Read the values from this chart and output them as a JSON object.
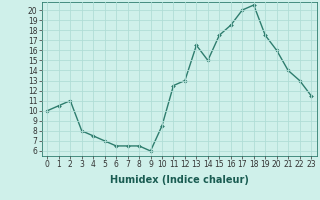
{
  "x": [
    0,
    1,
    2,
    3,
    4,
    5,
    6,
    7,
    8,
    9,
    10,
    11,
    12,
    13,
    14,
    15,
    16,
    17,
    18,
    19,
    20,
    21,
    22,
    23
  ],
  "y": [
    10.0,
    10.5,
    11.0,
    8.0,
    7.5,
    7.0,
    6.5,
    6.5,
    6.5,
    6.0,
    8.5,
    12.5,
    13.0,
    16.5,
    15.0,
    17.5,
    18.5,
    20.0,
    20.5,
    17.5,
    16.0,
    14.0,
    13.0,
    11.5
  ],
  "line_color": "#2e7d6e",
  "marker": "D",
  "marker_size": 2.0,
  "line_width": 1.0,
  "xlabel": "Humidex (Indice chaleur)",
  "xlabel_fontsize": 7,
  "xlim": [
    -0.5,
    23.5
  ],
  "ylim": [
    5.5,
    20.8
  ],
  "yticks": [
    6,
    7,
    8,
    9,
    10,
    11,
    12,
    13,
    14,
    15,
    16,
    17,
    18,
    19,
    20
  ],
  "xticks": [
    0,
    1,
    2,
    3,
    4,
    5,
    6,
    7,
    8,
    9,
    10,
    11,
    12,
    13,
    14,
    15,
    16,
    17,
    18,
    19,
    20,
    21,
    22,
    23
  ],
  "xtick_labels": [
    "0",
    "1",
    "2",
    "3",
    "4",
    "5",
    "6",
    "7",
    "8",
    "9",
    "10",
    "11",
    "12",
    "13",
    "14",
    "15",
    "16",
    "17",
    "18",
    "19",
    "20",
    "21",
    "22",
    "23"
  ],
  "bg_color": "#cff0ea",
  "grid_color": "#b0ddd6",
  "tick_fontsize": 5.5,
  "fig_bg": "#cff0ea"
}
